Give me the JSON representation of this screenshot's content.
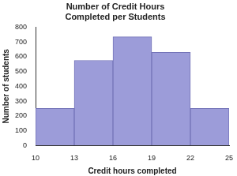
{
  "chart_data": {
    "type": "histogram",
    "title": [
      "Number of Credit Hours",
      "Completed per Students"
    ],
    "x_label": "Credit hours completed",
    "y_label": "Number of students",
    "bins": [
      10,
      13,
      16,
      19,
      22,
      25
    ],
    "values": [
      250,
      575,
      735,
      630,
      250
    ],
    "color": "#9c9cd9",
    "xlim": [
      10,
      25
    ],
    "xticks": [
      10,
      13,
      16,
      19,
      22,
      25
    ],
    "ylim": [
      0,
      800
    ],
    "yticks": [
      0,
      100,
      200,
      300,
      400,
      500,
      600,
      700,
      800
    ],
    "grid": false
  }
}
